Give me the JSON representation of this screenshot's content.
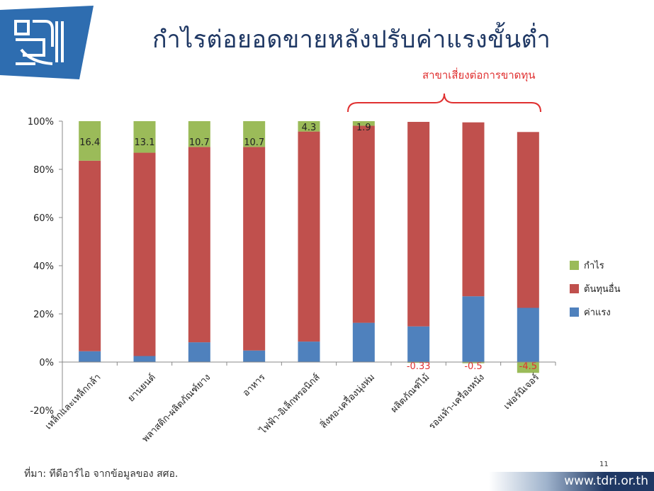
{
  "header": {
    "title": "กำไรต่อยอดขายหลังปรับค่าแรงขั้นต่ำ",
    "logo_icon": "tdri-logo-icon"
  },
  "annotation": {
    "risk_label": "สาขาเสี่ยงต่อการขาดทุน",
    "bracket_color": "#e03030"
  },
  "colors": {
    "profit": "#9bbb59",
    "other_cost": "#c0504d",
    "labor": "#4f81bd",
    "title": "#1f3864",
    "negative_label": "#e03030"
  },
  "chart_data": {
    "type": "bar",
    "stacked": true,
    "categories": [
      "เหล็กและเหล็กกล้า",
      "ยานยนต์",
      "พลาสติก-ผลิตภัณฑ์ยาง",
      "อาหาร",
      "ไฟฟ้า-อิเล็กทรอนิกส์",
      "สิ่งทอ-เครื่องนุ่งห่ม",
      "ผลิตภัณฑ์ไม้",
      "รองเท้า-เครื่องหนัง",
      "เฟอร์นิเจอร์"
    ],
    "series": [
      {
        "name": "ค่าแรง",
        "values": [
          4.5,
          2.5,
          8.2,
          4.8,
          8.5,
          16.3,
          14.8,
          27.3,
          22.5
        ]
      },
      {
        "name": "ต้นทุนอื่น",
        "values": [
          79.1,
          84.4,
          81.1,
          84.5,
          87.2,
          81.8,
          84.9,
          72.2,
          73.0
        ]
      },
      {
        "name": "กำไร",
        "values": [
          16.4,
          13.1,
          10.7,
          10.7,
          4.3,
          1.9,
          -0.33,
          -0.5,
          -4.5
        ]
      }
    ],
    "data_labels": [
      "16.4",
      "13.1",
      "10.7",
      "10.7",
      "4.3",
      "1.9",
      "-0.33",
      "-0.5",
      "-4.5"
    ],
    "ylim": [
      -20,
      100
    ],
    "yticks": [
      "100%",
      "80%",
      "60%",
      "40%",
      "20%",
      "0%",
      "-20%"
    ],
    "ytick_values": [
      100,
      80,
      60,
      40,
      20,
      0,
      -20
    ],
    "legend_position": "right",
    "grid": false
  },
  "legend": {
    "items": [
      {
        "label": "กำไร",
        "color": "#9bbb59"
      },
      {
        "label": "ต้นทุนอื่น",
        "color": "#c0504d"
      },
      {
        "label": "ค่าแรง",
        "color": "#4f81bd"
      }
    ]
  },
  "footer": {
    "source": "ที่มา: ทีดีอาร์ไอ จากข้อมูลของ สศอ.",
    "page_number": "11",
    "url": "www.tdri.or.th"
  }
}
